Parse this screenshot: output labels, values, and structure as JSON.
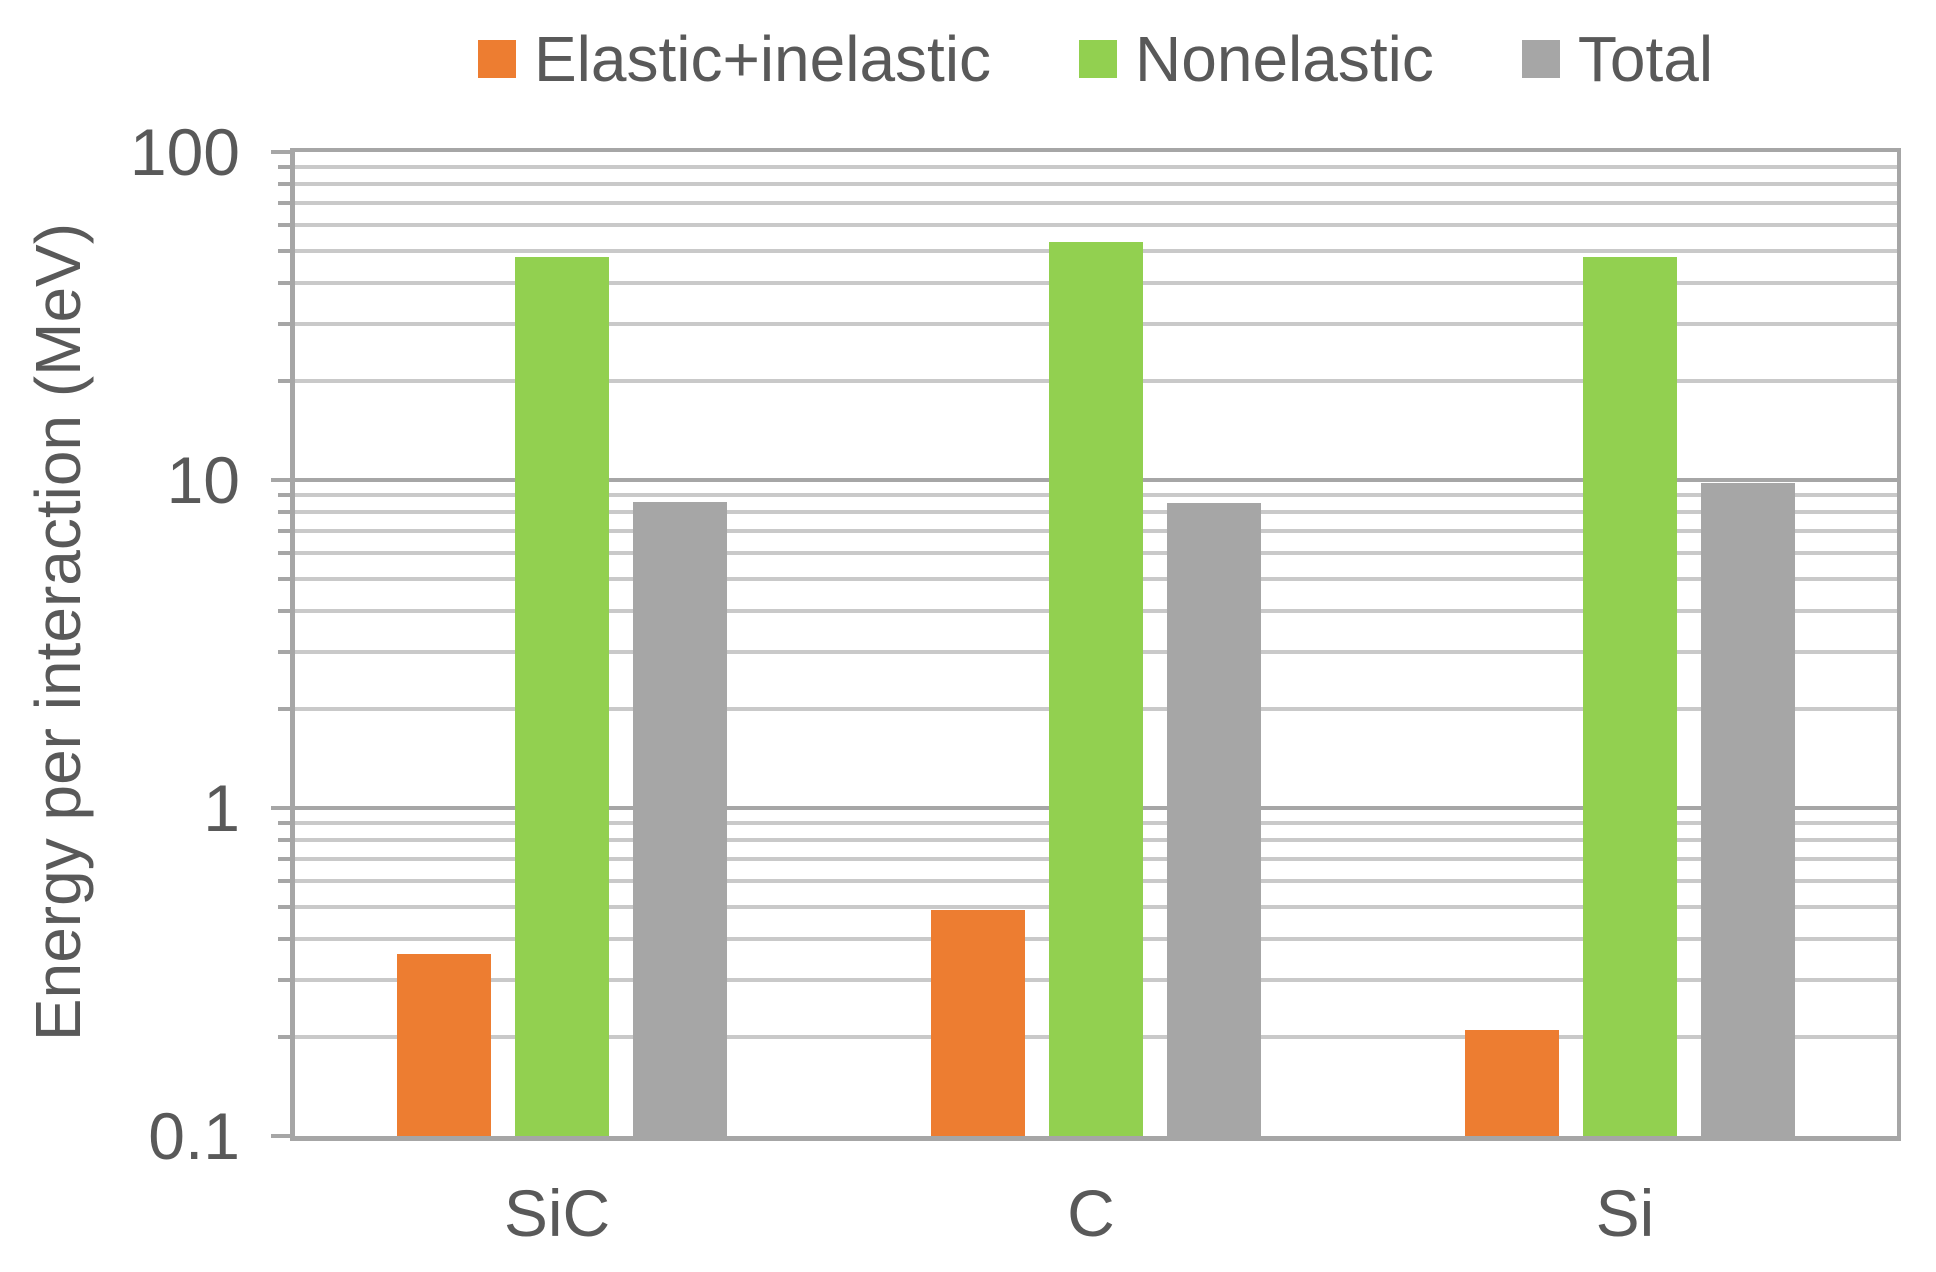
{
  "chart_data": {
    "type": "bar",
    "title": "",
    "categories": [
      "SiC",
      "C",
      "Si"
    ],
    "series": [
      {
        "name": "Elastic+inelastic",
        "color": "#ED7D31",
        "values": [
          0.36,
          0.49,
          0.21
        ]
      },
      {
        "name": "Nonelastic",
        "color": "#92D050",
        "values": [
          48,
          53,
          48
        ]
      },
      {
        "name": "Total",
        "color": "#A6A6A6",
        "values": [
          8.6,
          8.5,
          9.8
        ]
      }
    ],
    "xlabel": "",
    "ylabel": "Energy per interaction (MeV)",
    "yscale": "log",
    "ylim": [
      0.1,
      100
    ],
    "yticks": [
      {
        "label": "100",
        "value": 100
      },
      {
        "label": "10",
        "value": 10
      },
      {
        "label": "1",
        "value": 1
      },
      {
        "label": "0.1",
        "value": 0.1
      }
    ],
    "grid": {
      "major": true,
      "minor": true
    },
    "legend_position": "top",
    "colors": {
      "text": "#595959",
      "axis": "#A6A6A6",
      "minor_grid": "#C9C9C9"
    }
  }
}
